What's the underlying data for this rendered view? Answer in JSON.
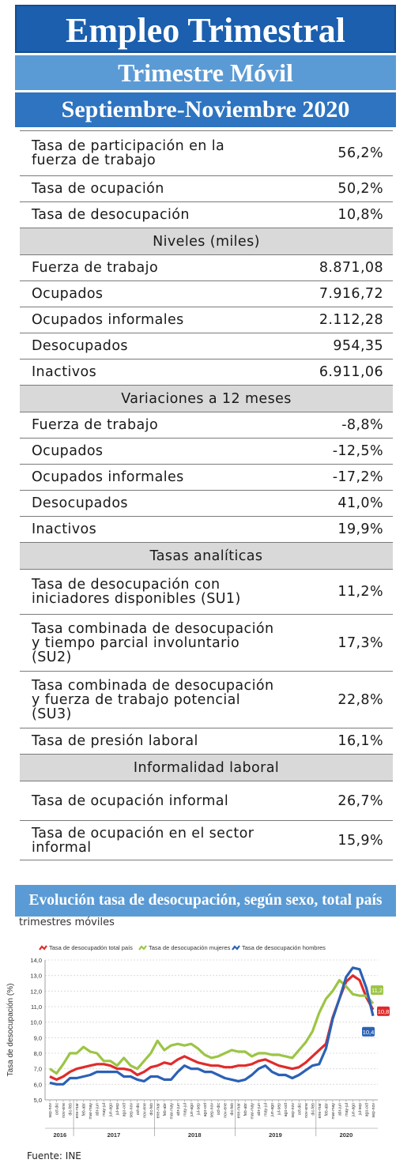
{
  "header": {
    "title": "Empleo Trimestral",
    "subtitle": "Trimestre Móvil",
    "period": "Septiembre-Noviembre 2020"
  },
  "main_rates": [
    {
      "label": "Tasa de participación en la fuerza de trabajo",
      "value": "56,2%"
    },
    {
      "label": "Tasa de ocupación",
      "value": "50,2%"
    },
    {
      "label": "Tasa de desocupación",
      "value": "10,8%"
    }
  ],
  "niveles": {
    "title": "Niveles (miles)",
    "rows": [
      {
        "label": "Fuerza de trabajo",
        "value": "8.871,08"
      },
      {
        "label": "Ocupados",
        "value": "7.916,72"
      },
      {
        "label": "Ocupados informales",
        "value": "2.112,28"
      },
      {
        "label": "Desocupados",
        "value": "954,35"
      },
      {
        "label": "Inactivos",
        "value": "6.911,06"
      }
    ]
  },
  "variaciones": {
    "title": "Variaciones a 12 meses",
    "rows": [
      {
        "label": "Fuerza de trabajo",
        "value": "-8,8%"
      },
      {
        "label": "Ocupados",
        "value": "-12,5%"
      },
      {
        "label": "Ocupados informales",
        "value": "-17,2%"
      },
      {
        "label": "Desocupados",
        "value": "41,0%"
      },
      {
        "label": "Inactivos",
        "value": "19,9%"
      }
    ]
  },
  "tasas_analiticas": {
    "title": "Tasas analíticas",
    "rows": [
      {
        "label": "Tasa de desocupación con iniciadores disponibles (SU1)",
        "value": "11,2%"
      },
      {
        "label": "Tasa combinada de desocupación y tiempo parcial involuntario (SU2)",
        "value": "17,3%"
      },
      {
        "label": "Tasa combinada de desocupación y fuerza de trabajo potencial (SU3)",
        "value": "22,8%"
      },
      {
        "label": "Tasa de presión laboral",
        "value": "16,1%"
      }
    ]
  },
  "informalidad": {
    "title": "Informalidad laboral",
    "rows": [
      {
        "label": "Tasa de ocupación informal",
        "value": "26,7%"
      },
      {
        "label": "Tasa de ocupación en el sector informal",
        "value": "15,9%"
      }
    ]
  },
  "chart_data": {
    "type": "line",
    "title": "Evolución tasa de desocupación, según sexo, total país",
    "subtitle": "trimestres móviles",
    "ylabel": "Tasa de desocupación (%)",
    "ylim": [
      5.0,
      14.0
    ],
    "yticks": [
      "14,0",
      "13,0",
      "12,0",
      "11,0",
      "10,0",
      "9,0",
      "8,0",
      "7,0",
      "6,0",
      "5,0"
    ],
    "x": [
      "sep-nov",
      "oct-dic",
      "nov-ene",
      "dic-feb",
      "ene-mar",
      "feb-abr",
      "mar-may",
      "abr-jun",
      "may-jul",
      "jun-ago",
      "jul-sep",
      "ago-oct",
      "sep-nov",
      "oct-dic",
      "nov-ene",
      "dic-feb",
      "ene-mar",
      "feb-abr",
      "mar-may",
      "abr-jun",
      "may-jul",
      "jun-ago",
      "jul-sep",
      "ago-oct",
      "sep-nov",
      "oct-dic",
      "nov-ene",
      "dic-feb",
      "ene-mar",
      "feb-abr",
      "mar-may",
      "abr-jun",
      "may-jul",
      "jun-ago",
      "jul-sep",
      "ago-oct",
      "sep-nov",
      "oct-dic",
      "nov-ene",
      "dic-feb",
      "ene-mar",
      "feb-abr",
      "mar-may",
      "abr-jun",
      "may-jul",
      "jun-ago",
      "jul-sep",
      "ago-oct",
      "sep-nov"
    ],
    "years": [
      {
        "label": "2016",
        "span": 4
      },
      {
        "label": "2017",
        "span": 12
      },
      {
        "label": "2018",
        "span": 12
      },
      {
        "label": "2019",
        "span": 12
      },
      {
        "label": "2020",
        "span": 9
      }
    ],
    "series": [
      {
        "name": "Tasa de desocupadón total país",
        "color": "#e02b2b",
        "end_label": "10,8",
        "values": [
          6.5,
          6.3,
          6.5,
          6.8,
          7.0,
          7.1,
          7.2,
          7.3,
          7.3,
          7.2,
          7.0,
          7.0,
          6.9,
          6.6,
          6.8,
          7.1,
          7.2,
          7.4,
          7.3,
          7.6,
          7.8,
          7.6,
          7.4,
          7.3,
          7.2,
          7.2,
          7.1,
          7.1,
          7.2,
          7.2,
          7.3,
          7.5,
          7.6,
          7.4,
          7.2,
          7.1,
          7.0,
          7.1,
          7.4,
          7.8,
          8.2,
          8.6,
          10.3,
          11.5,
          12.6,
          13.0,
          12.7,
          11.6,
          10.8
        ]
      },
      {
        "name": "Tasa de desocupación mujeres",
        "color": "#9cc545",
        "end_label": "11,2",
        "values": [
          7.0,
          6.7,
          7.3,
          8.0,
          8.0,
          8.4,
          8.1,
          8.0,
          7.5,
          7.5,
          7.2,
          7.7,
          7.2,
          7.0,
          7.5,
          8.0,
          8.8,
          8.2,
          8.5,
          8.6,
          8.5,
          8.6,
          8.3,
          7.9,
          7.7,
          7.8,
          8.0,
          8.2,
          8.1,
          8.1,
          7.8,
          8.0,
          8.0,
          7.9,
          7.9,
          7.8,
          7.7,
          8.2,
          8.7,
          9.4,
          10.6,
          11.5,
          12.0,
          12.7,
          12.3,
          11.8,
          11.7,
          11.7,
          11.2
        ]
      },
      {
        "name": "Tasa de desocupación hombres",
        "color": "#2b61b5",
        "end_label": "10,4",
        "values": [
          6.1,
          6.0,
          6.0,
          6.4,
          6.4,
          6.5,
          6.6,
          6.8,
          6.8,
          6.8,
          6.8,
          6.5,
          6.5,
          6.3,
          6.2,
          6.5,
          6.5,
          6.3,
          6.3,
          6.8,
          7.2,
          7.0,
          7.0,
          6.8,
          6.8,
          6.6,
          6.4,
          6.3,
          6.2,
          6.3,
          6.6,
          7.0,
          7.2,
          6.8,
          6.6,
          6.6,
          6.4,
          6.6,
          6.9,
          7.2,
          7.3,
          8.3,
          10.2,
          11.5,
          12.9,
          13.5,
          13.4,
          12.2,
          10.4
        ]
      }
    ]
  },
  "source": "Fuente: INE"
}
